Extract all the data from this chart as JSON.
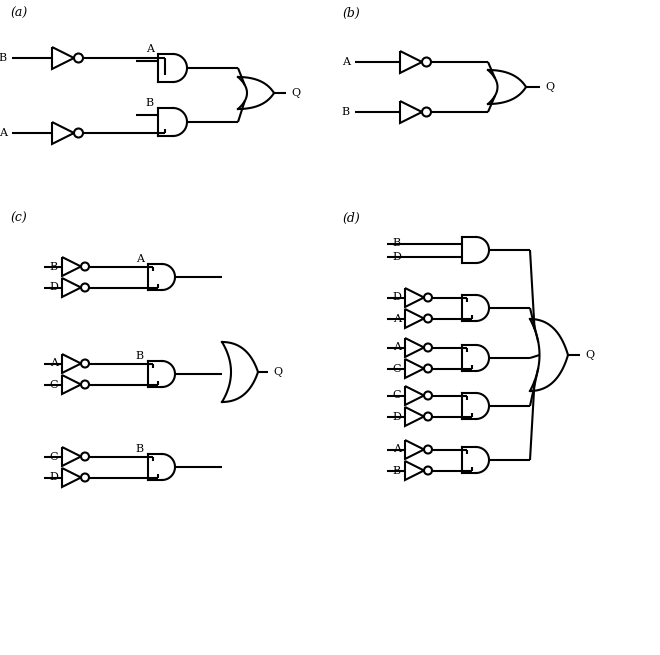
{
  "fig_width": 6.6,
  "fig_height": 6.55,
  "dpi": 100,
  "lw": 1.5,
  "panels": {
    "a_label": "(a)",
    "b_label": "(b)",
    "c_label": "(c)",
    "d_label": "(d)"
  },
  "colors": {
    "line": "black",
    "bg": "white",
    "bubble_fill": "white"
  }
}
